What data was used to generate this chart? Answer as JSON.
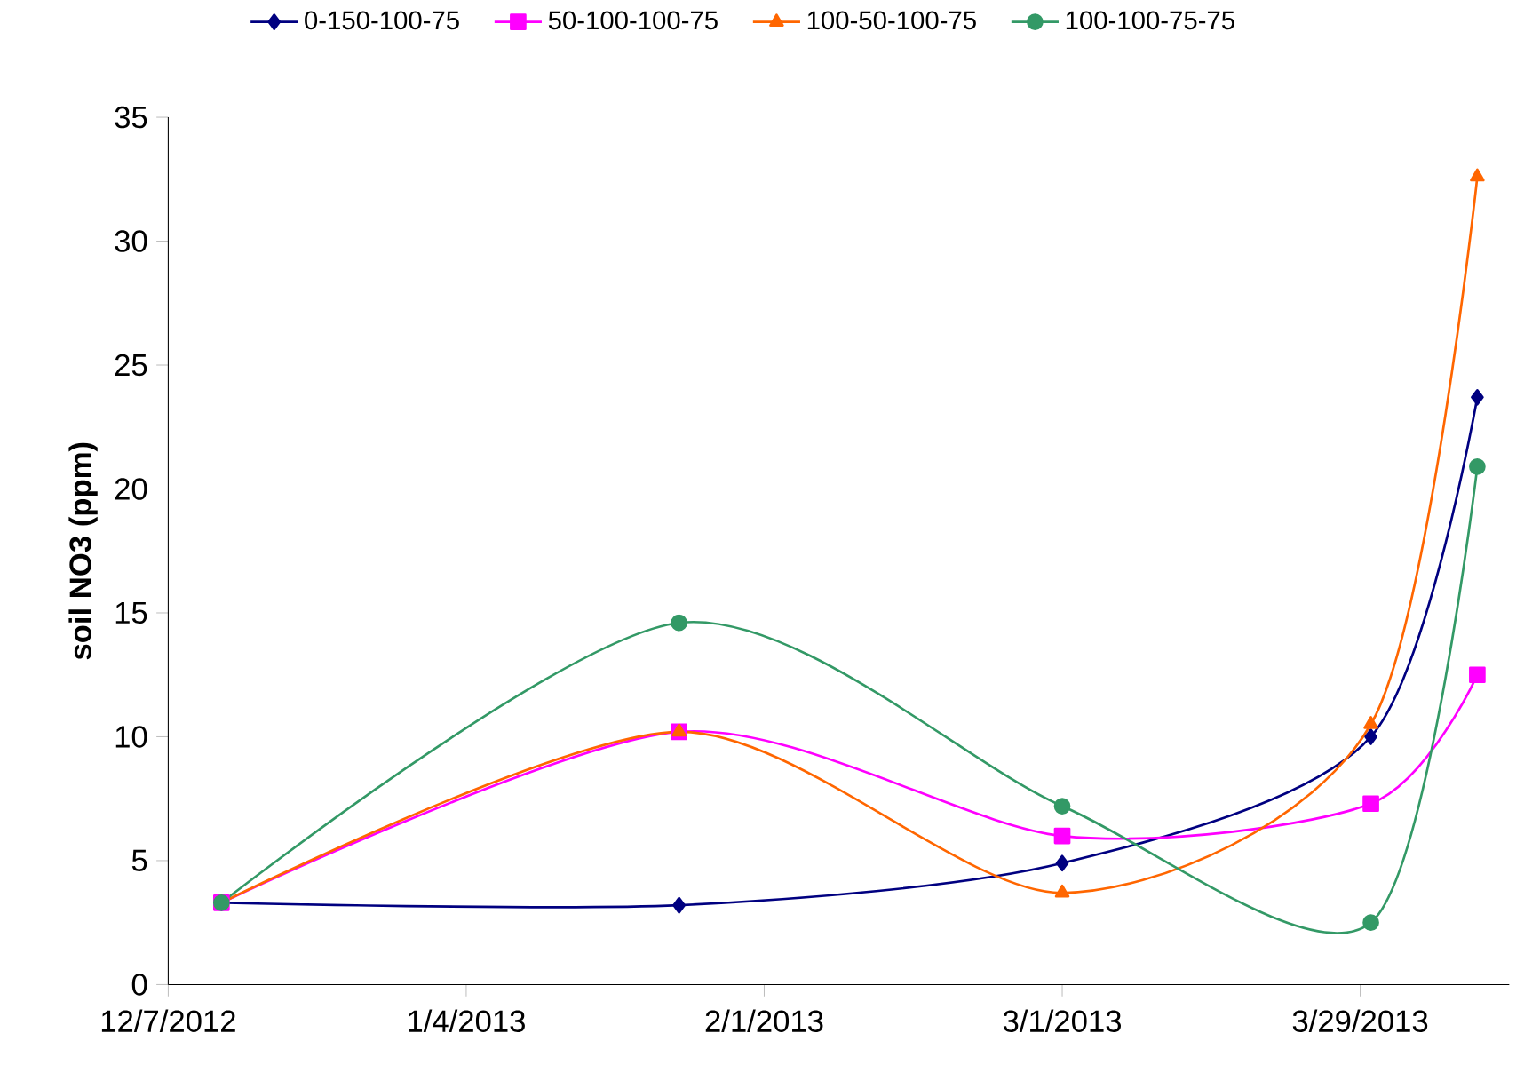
{
  "chart_data": {
    "type": "line",
    "ylabel": "soil NO3 (ppm)",
    "x": [
      "2012-12-12",
      "2013-01-24",
      "2013-03-01",
      "2013-03-30",
      "2013-04-09"
    ],
    "series": [
      {
        "name": "0-150-100-75",
        "color": "#000080",
        "marker": "diamond",
        "values": [
          3.3,
          3.2,
          4.9,
          10.0,
          23.7
        ]
      },
      {
        "name": "50-100-100-75",
        "color": "#ff00ff",
        "marker": "square",
        "values": [
          3.3,
          10.2,
          6.0,
          7.3,
          12.5
        ]
      },
      {
        "name": "100-50-100-75",
        "color": "#ff6600",
        "marker": "triangle",
        "values": [
          3.3,
          10.2,
          3.7,
          10.5,
          32.6
        ]
      },
      {
        "name": "100-100-75-75",
        "color": "#339966",
        "marker": "circle",
        "values": [
          3.3,
          14.6,
          7.2,
          2.5,
          20.9
        ]
      }
    ],
    "xlim": [
      "2012-12-07",
      "2013-04-12"
    ],
    "xticks": [
      {
        "value": "2012-12-07",
        "label": "12/7/2012"
      },
      {
        "value": "2013-01-04",
        "label": "1/4/2013"
      },
      {
        "value": "2013-02-01",
        "label": "2/1/2013"
      },
      {
        "value": "2013-03-01",
        "label": "3/1/2013"
      },
      {
        "value": "2013-03-29",
        "label": "3/29/2013"
      }
    ],
    "ylim": [
      0,
      35
    ],
    "yticks": [
      0,
      5,
      10,
      15,
      20,
      25,
      30,
      35
    ],
    "grid": false,
    "legend": "top",
    "line_style": "solid"
  }
}
